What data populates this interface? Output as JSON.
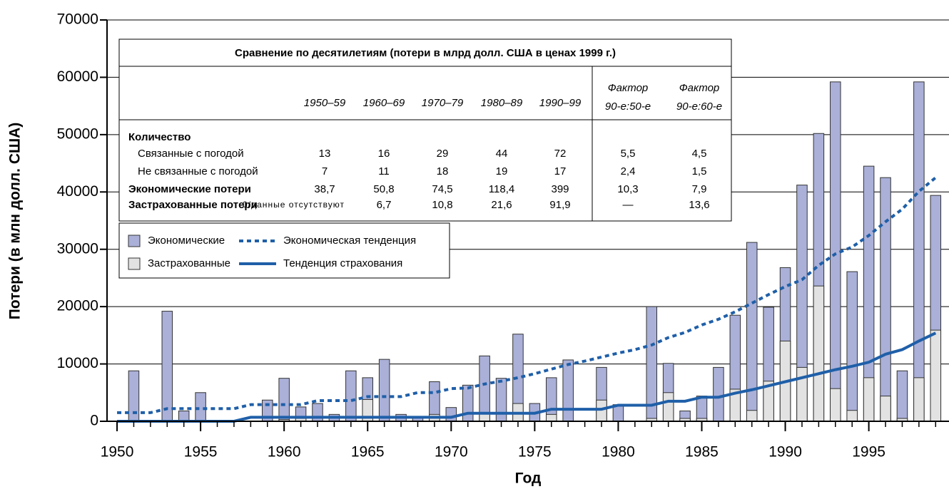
{
  "chart_data": {
    "type": "bar",
    "y_label": "Потери (в млн долл. США)",
    "x_label": "Год",
    "xlim": [
      1949.4,
      1999.8
    ],
    "xticks": [
      1950,
      1955,
      1960,
      1965,
      1970,
      1975,
      1980,
      1985,
      1990,
      1995
    ],
    "ylim": [
      0,
      70000
    ],
    "yticks": [
      0,
      10000,
      20000,
      30000,
      40000,
      50000,
      60000,
      70000
    ],
    "grid": true,
    "x": [
      1950,
      1951,
      1952,
      1953,
      1954,
      1955,
      1956,
      1957,
      1958,
      1959,
      1960,
      1961,
      1962,
      1963,
      1964,
      1965,
      1966,
      1967,
      1968,
      1969,
      1970,
      1971,
      1972,
      1973,
      1974,
      1975,
      1976,
      1977,
      1978,
      1979,
      1980,
      1981,
      1982,
      1983,
      1984,
      1985,
      1986,
      1987,
      1988,
      1989,
      1990,
      1991,
      1992,
      1993,
      1994,
      1995,
      1996,
      1997,
      1998,
      1999
    ],
    "series": [
      {
        "name": "Экономические",
        "type": "bar",
        "color": "#aab0d8",
        "values": [
          0,
          8800,
          0,
          19200,
          1800,
          5000,
          0,
          0,
          0,
          3700,
          7500,
          2500,
          3100,
          1200,
          8800,
          7600,
          10800,
          1200,
          700,
          6900,
          2400,
          6300,
          11400,
          7500,
          15200,
          3100,
          7600,
          10700,
          0,
          9400,
          2900,
          0,
          20000,
          10100,
          1800,
          4400,
          9400,
          18500,
          31200,
          19900,
          26800,
          41200,
          50200,
          59200,
          26100,
          44500,
          42500,
          8800,
          59200,
          39400
        ]
      },
      {
        "name": "Застрахованные",
        "type": "bar",
        "color": "#e2e2e2",
        "values": [
          0,
          0,
          0,
          0,
          0,
          0,
          0,
          0,
          0,
          0,
          300,
          500,
          0,
          0,
          0,
          3800,
          0,
          0,
          0,
          1200,
          0,
          0,
          1300,
          0,
          3100,
          0,
          1200,
          0,
          0,
          3700,
          0,
          0,
          500,
          5000,
          500,
          500,
          0,
          5600,
          1900,
          7000,
          14000,
          9400,
          23600,
          5700,
          1900,
          7600,
          4400,
          500,
          7600,
          15900
        ]
      },
      {
        "name": "Экономическая тенденция",
        "type": "line",
        "dash": true,
        "color": "#1f5fa8",
        "values": [
          1500,
          1500,
          1500,
          2200,
          2200,
          2200,
          2200,
          2200,
          2900,
          2900,
          2900,
          2900,
          3600,
          3600,
          3600,
          4300,
          4300,
          4300,
          5000,
          5000,
          5700,
          5800,
          6500,
          7000,
          7600,
          8300,
          9100,
          9900,
          10500,
          11200,
          11900,
          12500,
          13300,
          14600,
          15500,
          16800,
          17800,
          19100,
          20600,
          22100,
          23500,
          24700,
          27200,
          29200,
          30400,
          32400,
          34800,
          37000,
          40100,
          42500
        ]
      },
      {
        "name": "Тенденция страхования",
        "type": "line",
        "dash": false,
        "color": "#1f5fa8",
        "values": [
          0,
          0,
          0,
          0,
          0,
          0,
          0,
          0,
          700,
          700,
          700,
          700,
          700,
          700,
          700,
          700,
          700,
          700,
          700,
          700,
          700,
          1400,
          1400,
          1400,
          1400,
          1400,
          2100,
          2100,
          2100,
          2100,
          2800,
          2800,
          2800,
          3500,
          3500,
          4200,
          4200,
          4900,
          5500,
          6200,
          6900,
          7600,
          8300,
          9000,
          9600,
          10300,
          11700,
          12500,
          14000,
          15400
        ]
      }
    ]
  },
  "table": {
    "title": "Сравнение по десятилетиям (потери в млрд долл. США в ценах 1999 г.)",
    "columns": [
      [
        "1950–59"
      ],
      [
        "1960–69"
      ],
      [
        "1970–79"
      ],
      [
        "1980–89"
      ],
      [
        "1990–99"
      ],
      [
        "Фактор",
        "90-е:50-е"
      ],
      [
        "Фактор",
        "90-е:60-е"
      ]
    ],
    "rows": [
      {
        "label": "Количество",
        "bold": true,
        "cells": []
      },
      {
        "label": "Связанные с погодой",
        "bold": false,
        "cells": [
          "13",
          "16",
          "29",
          "44",
          "72",
          "5,5",
          "4,5"
        ]
      },
      {
        "label": "Не связанные с погодой",
        "bold": false,
        "cells": [
          "7",
          "11",
          "18",
          "19",
          "17",
          "2,4",
          "1,5"
        ]
      },
      {
        "label": "Экономические потери",
        "bold": true,
        "cells": [
          "38,7",
          "50,8",
          "74,5",
          "118,4",
          "399",
          "10,3",
          "7,9"
        ]
      },
      {
        "label": "Застрахованные потери",
        "bold": true,
        "cells": [
          "0/данные отсутствуют",
          "6,7",
          "10,8",
          "21,6",
          "91,9",
          "—",
          "13,6"
        ]
      }
    ]
  }
}
